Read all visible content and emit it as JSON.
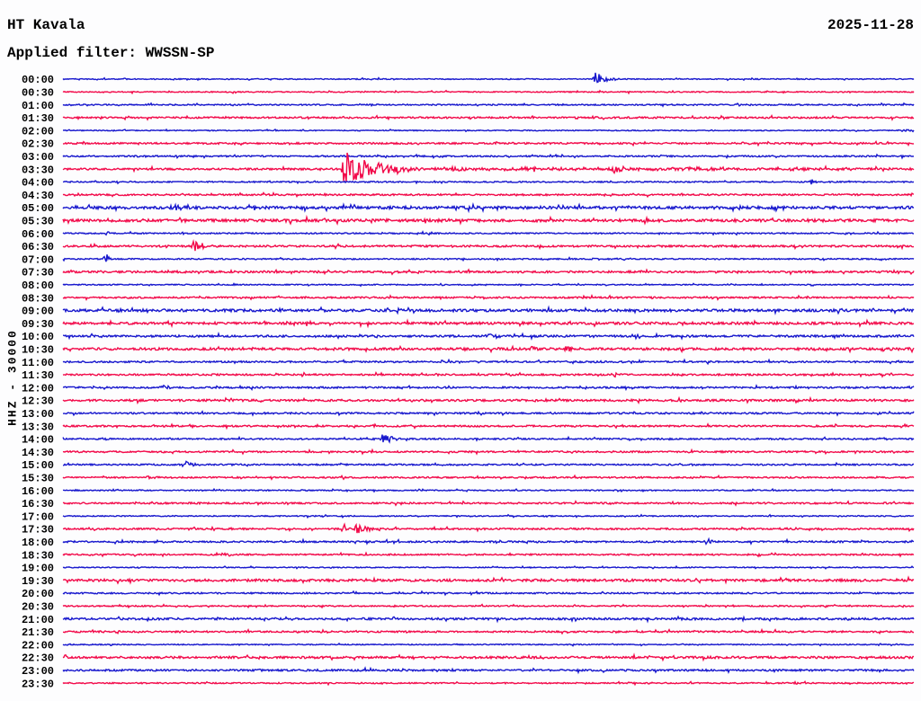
{
  "header": {
    "station": "HT Kavala",
    "date": "2025-11-28",
    "filter": "Applied filter: WWSSN-SP"
  },
  "axis": {
    "left_label": "HHZ - 30000"
  },
  "colors": {
    "blue": "#1717cd",
    "red": "#f20a4a",
    "text": "#000000",
    "background": "#fdfdfe"
  },
  "chart_data": {
    "type": "line",
    "kind": "helicorder-seismogram",
    "station": "HT Kavala",
    "date": "2025-11-28",
    "channel": "HHZ",
    "gain_scale": 30000,
    "filter": "WWSSN-SP",
    "minutes_per_row": 30,
    "trace_color_cycle": [
      "blue",
      "red"
    ],
    "rows": [
      {
        "label": "00:00",
        "color": "blue",
        "noise": 0.55,
        "events": [
          {
            "pos": 0.627,
            "amp": 10,
            "coda": 9,
            "spike": [
              15,
              37
            ]
          }
        ]
      },
      {
        "label": "00:30",
        "color": "red",
        "noise": 0.6,
        "events": []
      },
      {
        "label": "01:00",
        "color": "blue",
        "noise": 0.7,
        "events": []
      },
      {
        "label": "01:30",
        "color": "red",
        "noise": 0.9,
        "events": []
      },
      {
        "label": "02:00",
        "color": "blue",
        "noise": 0.5,
        "events": [
          {
            "pos": 0.992,
            "amp": 2,
            "coda": 2
          }
        ]
      },
      {
        "label": "02:30",
        "color": "red",
        "noise": 0.9,
        "events": []
      },
      {
        "label": "03:00",
        "color": "blue",
        "noise": 0.8,
        "events": []
      },
      {
        "label": "03:30",
        "color": "red",
        "noise": 1.0,
        "events": [
          {
            "pos": 0.332,
            "amp": 22,
            "coda": 30,
            "spike": [
              60,
              62
            ]
          },
          {
            "pos": 0.45,
            "amp": 1.5,
            "coda": 400
          },
          {
            "pos": 0.649,
            "amp": 6,
            "coda": 7
          },
          {
            "pos": 0.719,
            "amp": 2,
            "coda": 50
          },
          {
            "pos": 0.856,
            "amp": 2,
            "coda": 35
          }
        ]
      },
      {
        "label": "04:00",
        "color": "blue",
        "noise": 0.7,
        "events": [
          {
            "pos": 0.879,
            "amp": 4,
            "coda": 5
          }
        ]
      },
      {
        "label": "04:30",
        "color": "red",
        "noise": 0.9,
        "events": []
      },
      {
        "label": "05:00",
        "color": "blue",
        "noise": 1.5,
        "events": [
          {
            "pos": 0.128,
            "amp": 3.5,
            "coda": 14
          }
        ]
      },
      {
        "label": "05:30",
        "color": "red",
        "noise": 1.5,
        "events": []
      },
      {
        "label": "06:00",
        "color": "blue",
        "noise": 0.7,
        "events": []
      },
      {
        "label": "06:30",
        "color": "red",
        "noise": 1.0,
        "events": [
          {
            "pos": 0.155,
            "amp": 7,
            "coda": 10
          }
        ]
      },
      {
        "label": "07:00",
        "color": "blue",
        "noise": 0.7,
        "events": [
          {
            "pos": 0.051,
            "amp": 7,
            "coda": 3
          }
        ]
      },
      {
        "label": "07:30",
        "color": "red",
        "noise": 1.1,
        "events": []
      },
      {
        "label": "08:00",
        "color": "blue",
        "noise": 0.6,
        "events": []
      },
      {
        "label": "08:30",
        "color": "red",
        "noise": 0.9,
        "events": []
      },
      {
        "label": "09:00",
        "color": "blue",
        "noise": 1.4,
        "events": []
      },
      {
        "label": "09:30",
        "color": "red",
        "noise": 1.3,
        "events": []
      },
      {
        "label": "10:00",
        "color": "blue",
        "noise": 1.1,
        "events": [
          {
            "pos": 0.498,
            "amp": 3,
            "coda": 10
          }
        ]
      },
      {
        "label": "10:30",
        "color": "red",
        "noise": 1.3,
        "events": [
          {
            "pos": 0.55,
            "amp": 2.5,
            "coda": 7
          },
          {
            "pos": 0.592,
            "amp": 3.5,
            "coda": 7
          },
          {
            "pos": 0.963,
            "amp": 5,
            "coda": 4
          },
          {
            "pos": 0.999,
            "amp": 4,
            "coda": 2
          }
        ]
      },
      {
        "label": "11:00",
        "color": "blue",
        "noise": 0.9,
        "events": []
      },
      {
        "label": "11:30",
        "color": "red",
        "noise": 0.9,
        "events": [
          {
            "pos": 0.649,
            "amp": 4,
            "coda": 3
          }
        ]
      },
      {
        "label": "12:00",
        "color": "blue",
        "noise": 0.9,
        "events": [
          {
            "pos": 0.118,
            "amp": 2,
            "coda": 8
          }
        ]
      },
      {
        "label": "12:30",
        "color": "red",
        "noise": 1.1,
        "events": []
      },
      {
        "label": "13:00",
        "color": "blue",
        "noise": 0.9,
        "events": []
      },
      {
        "label": "13:30",
        "color": "red",
        "noise": 0.9,
        "events": []
      },
      {
        "label": "14:00",
        "color": "blue",
        "noise": 0.8,
        "events": [
          {
            "pos": 0.377,
            "amp": 8,
            "coda": 8,
            "spike": [
              33,
              47
            ]
          }
        ]
      },
      {
        "label": "14:30",
        "color": "red",
        "noise": 0.9,
        "events": []
      },
      {
        "label": "15:00",
        "color": "blue",
        "noise": 0.8,
        "events": [
          {
            "pos": 0.143,
            "amp": 4,
            "coda": 8
          }
        ]
      },
      {
        "label": "15:30",
        "color": "red",
        "noise": 0.8,
        "events": [
          {
            "pos": 0.1,
            "amp": 3,
            "coda": 6
          }
        ]
      },
      {
        "label": "16:00",
        "color": "blue",
        "noise": 0.6,
        "events": []
      },
      {
        "label": "16:30",
        "color": "red",
        "noise": 0.9,
        "events": []
      },
      {
        "label": "17:00",
        "color": "blue",
        "noise": 0.6,
        "events": []
      },
      {
        "label": "17:30",
        "color": "red",
        "noise": 0.9,
        "events": [
          {
            "pos": 0.33,
            "amp": 6,
            "coda": 3
          },
          {
            "pos": 0.346,
            "amp": 7,
            "coda": 9
          }
        ]
      },
      {
        "label": "18:00",
        "color": "blue",
        "noise": 0.9,
        "events": [
          {
            "pos": 0.111,
            "amp": 2.5,
            "coda": 4
          },
          {
            "pos": 0.758,
            "amp": 4,
            "coda": 7
          }
        ]
      },
      {
        "label": "18:30",
        "color": "red",
        "noise": 0.8,
        "events": [
          {
            "pos": 0.19,
            "amp": 2,
            "coda": 6
          }
        ]
      },
      {
        "label": "19:00",
        "color": "blue",
        "noise": 0.55,
        "events": []
      },
      {
        "label": "19:30",
        "color": "red",
        "noise": 1.3,
        "events": []
      },
      {
        "label": "20:00",
        "color": "blue",
        "noise": 0.8,
        "events": []
      },
      {
        "label": "20:30",
        "color": "red",
        "noise": 0.7,
        "events": [
          {
            "pos": 0.793,
            "amp": 2,
            "coda": 2
          }
        ]
      },
      {
        "label": "21:00",
        "color": "blue",
        "noise": 1.1,
        "events": []
      },
      {
        "label": "21:30",
        "color": "red",
        "noise": 0.9,
        "events": []
      },
      {
        "label": "22:00",
        "color": "blue",
        "noise": 0.55,
        "events": []
      },
      {
        "label": "22:30",
        "color": "red",
        "noise": 1.2,
        "events": []
      },
      {
        "label": "23:00",
        "color": "blue",
        "noise": 1.0,
        "events": []
      },
      {
        "label": "23:30",
        "color": "red",
        "noise": 0.7,
        "events": []
      }
    ]
  }
}
